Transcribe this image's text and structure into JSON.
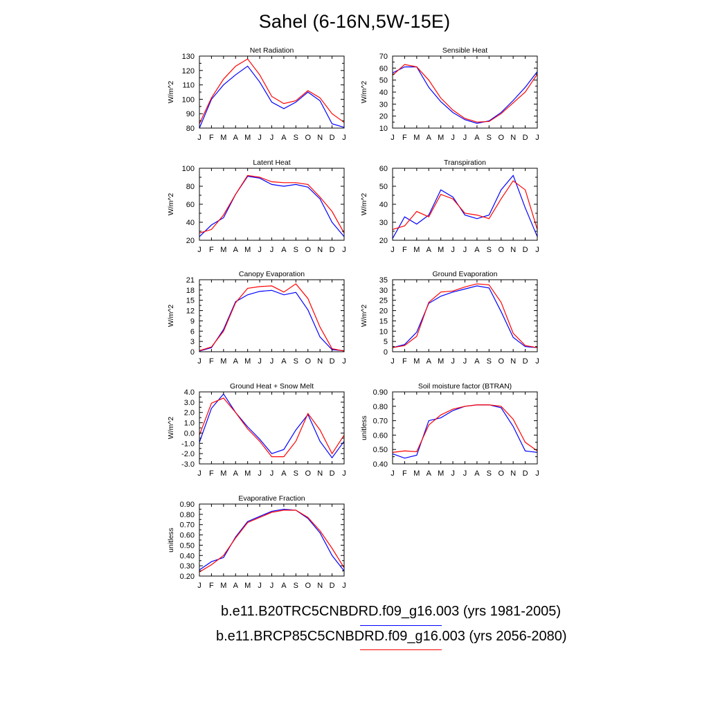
{
  "title": "Sahel (6-16N,5W-15E)",
  "colors": {
    "run1": "#0000ff",
    "run2": "#ff0000",
    "axis": "#000000"
  },
  "legend": [
    {
      "label": "b.e11.B20TRC5CNBDRD.f09_g16.003 (yrs 1981-2005)",
      "color": "#0000ff"
    },
    {
      "label": "b.e11.BRCP85C5CNBDRD.f09_g16.003 (yrs 2056-2080)",
      "color": "#ff0000"
    }
  ],
  "chart_data": [
    {
      "type": "line",
      "title": "Net Radiation",
      "ylabel": "W/m^2",
      "categories": [
        "J",
        "F",
        "M",
        "A",
        "M",
        "J",
        "J",
        "A",
        "S",
        "O",
        "N",
        "D",
        "J"
      ],
      "ylim": [
        80,
        130
      ],
      "yticks": [
        "80",
        "90",
        "100",
        "110",
        "120",
        "130"
      ],
      "series": [
        {
          "values": [
            80,
            100,
            110,
            117,
            123,
            112,
            98,
            93.5,
            98,
            105,
            99,
            83,
            80.5
          ],
          "color": "#0000ff"
        },
        {
          "values": [
            83,
            101,
            114,
            123,
            128,
            117,
            102,
            97,
            99,
            106,
            101,
            90,
            84
          ],
          "color": "#ff0000"
        }
      ]
    },
    {
      "type": "line",
      "title": "Sensible Heat",
      "ylabel": "W/m^2",
      "categories": [
        "J",
        "F",
        "M",
        "A",
        "M",
        "J",
        "J",
        "A",
        "S",
        "O",
        "N",
        "D",
        "J"
      ],
      "ylim": [
        10,
        70
      ],
      "yticks": [
        "10",
        "20",
        "30",
        "40",
        "50",
        "60",
        "70"
      ],
      "series": [
        {
          "values": [
            56,
            61,
            61,
            44,
            32,
            23,
            17,
            14,
            16,
            23,
            33,
            44,
            57
          ],
          "color": "#0000ff"
        },
        {
          "values": [
            54,
            63,
            61,
            50,
            35,
            25,
            18,
            15,
            15.5,
            22,
            31,
            40,
            55
          ],
          "color": "#ff0000"
        }
      ]
    },
    {
      "type": "line",
      "title": "Latent Heat",
      "ylabel": "W/m^2",
      "categories": [
        "J",
        "F",
        "M",
        "A",
        "M",
        "J",
        "J",
        "A",
        "S",
        "O",
        "N",
        "D",
        "J"
      ],
      "ylim": [
        20,
        100
      ],
      "yticks": [
        "20",
        "40",
        "60",
        "80",
        "100"
      ],
      "series": [
        {
          "values": [
            24,
            37,
            45,
            71,
            91,
            89,
            82,
            80,
            82,
            79,
            66,
            40,
            24
          ],
          "color": "#0000ff"
        },
        {
          "values": [
            28,
            32,
            48,
            71,
            92,
            90,
            85,
            84,
            84,
            82,
            68,
            52,
            28
          ],
          "color": "#ff0000"
        }
      ]
    },
    {
      "type": "line",
      "title": "Transpiration",
      "ylabel": "W/m^2",
      "categories": [
        "J",
        "F",
        "M",
        "A",
        "M",
        "J",
        "J",
        "A",
        "S",
        "O",
        "N",
        "D",
        "J"
      ],
      "ylim": [
        20,
        60
      ],
      "yticks": [
        "20",
        "30",
        "40",
        "50",
        "60"
      ],
      "series": [
        {
          "values": [
            21,
            33,
            29,
            34,
            48,
            44,
            34,
            32,
            34,
            48,
            56,
            38,
            22
          ],
          "color": "#0000ff"
        },
        {
          "values": [
            26,
            28,
            36,
            33,
            45.5,
            43,
            35,
            34,
            32,
            43,
            53,
            48,
            26
          ],
          "color": "#ff0000"
        }
      ]
    },
    {
      "type": "line",
      "title": "Canopy Evaporation",
      "ylabel": "W/m^2",
      "categories": [
        "J",
        "F",
        "M",
        "A",
        "M",
        "J",
        "J",
        "A",
        "S",
        "O",
        "N",
        "D",
        "J"
      ],
      "ylim": [
        0,
        21
      ],
      "yticks": [
        "0",
        "3",
        "6",
        "9",
        "12",
        "15",
        "18",
        "21"
      ],
      "series": [
        {
          "values": [
            0.2,
            1.2,
            6.5,
            14.6,
            16.6,
            17.6,
            17.9,
            16.6,
            17.3,
            12.2,
            4.3,
            0.6,
            0.3
          ],
          "color": "#0000ff"
        },
        {
          "values": [
            0.3,
            1.4,
            6.0,
            14.3,
            18.5,
            19.0,
            19.2,
            17.4,
            19.8,
            15.5,
            7.2,
            0.9,
            0.2
          ],
          "color": "#ff0000"
        }
      ]
    },
    {
      "type": "line",
      "title": "Ground Evaporation",
      "ylabel": "W/m^2",
      "categories": [
        "J",
        "F",
        "M",
        "A",
        "M",
        "J",
        "J",
        "A",
        "S",
        "O",
        "N",
        "D",
        "J"
      ],
      "ylim": [
        0,
        35
      ],
      "yticks": [
        "0",
        "5",
        "10",
        "15",
        "20",
        "25",
        "30",
        "35"
      ],
      "series": [
        {
          "values": [
            2,
            3.5,
            9.5,
            23.5,
            27,
            29,
            30.5,
            32,
            31,
            19.5,
            7,
            2.5,
            2
          ],
          "color": "#0000ff"
        },
        {
          "values": [
            2,
            3,
            7.5,
            24,
            29,
            29.5,
            31.5,
            33,
            32.5,
            24,
            9,
            3,
            2
          ],
          "color": "#ff0000"
        }
      ]
    },
    {
      "type": "line",
      "title": "Ground Heat + Snow Melt",
      "ylabel": "W/m^2",
      "categories": [
        "J",
        "F",
        "M",
        "A",
        "M",
        "J",
        "J",
        "A",
        "S",
        "O",
        "N",
        "D",
        "J"
      ],
      "ylim": [
        -3,
        4
      ],
      "yticks": [
        "-3.0",
        "-2.0",
        "-1.0",
        "0.0",
        "1.0",
        "2.0",
        "3.0",
        "4.0"
      ],
      "series": [
        {
          "values": [
            -0.9,
            2.4,
            3.8,
            2.0,
            0.6,
            -0.6,
            -2.0,
            -1.6,
            0.3,
            1.8,
            -0.8,
            -2.4,
            -0.8
          ],
          "color": "#0000ff"
        },
        {
          "values": [
            -0.2,
            2.9,
            3.4,
            2.0,
            0.4,
            -0.8,
            -2.3,
            -2.3,
            -0.8,
            1.9,
            0.3,
            -2.0,
            -0.2
          ],
          "color": "#ff0000"
        }
      ]
    },
    {
      "type": "line",
      "title": "Soil moisture factor (BTRAN)",
      "ylabel": "unitless",
      "categories": [
        "J",
        "F",
        "M",
        "A",
        "M",
        "J",
        "J",
        "A",
        "S",
        "O",
        "N",
        "D",
        "J"
      ],
      "ylim": [
        0.4,
        0.9
      ],
      "yticks": [
        "0.40",
        "0.50",
        "0.60",
        "0.70",
        "0.80",
        "0.90"
      ],
      "series": [
        {
          "values": [
            0.47,
            0.44,
            0.46,
            0.7,
            0.72,
            0.77,
            0.8,
            0.81,
            0.81,
            0.79,
            0.66,
            0.49,
            0.48
          ],
          "color": "#0000ff"
        },
        {
          "values": [
            0.48,
            0.49,
            0.485,
            0.67,
            0.74,
            0.78,
            0.8,
            0.81,
            0.81,
            0.8,
            0.71,
            0.55,
            0.49
          ],
          "color": "#ff0000"
        }
      ]
    },
    {
      "type": "line",
      "title": "Evaporative Fraction",
      "ylabel": "unitless",
      "categories": [
        "J",
        "F",
        "M",
        "A",
        "M",
        "J",
        "J",
        "A",
        "S",
        "O",
        "N",
        "D",
        "J"
      ],
      "ylim": [
        0.2,
        0.9
      ],
      "yticks": [
        "0.20",
        "0.30",
        "0.40",
        "0.50",
        "0.60",
        "0.70",
        "0.80",
        "0.90"
      ],
      "series": [
        {
          "values": [
            0.26,
            0.34,
            0.38,
            0.58,
            0.73,
            0.78,
            0.83,
            0.85,
            0.84,
            0.76,
            0.62,
            0.4,
            0.25
          ],
          "color": "#0000ff"
        },
        {
          "values": [
            0.24,
            0.31,
            0.4,
            0.57,
            0.72,
            0.77,
            0.82,
            0.84,
            0.84,
            0.77,
            0.64,
            0.47,
            0.28
          ],
          "color": "#ff0000"
        }
      ]
    }
  ]
}
